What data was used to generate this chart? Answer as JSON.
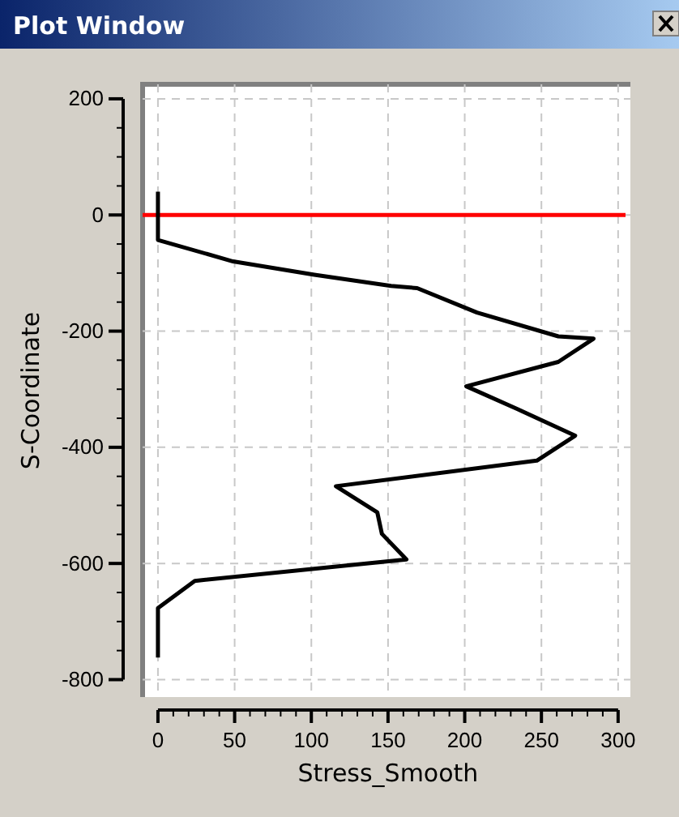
{
  "chart_data": {
    "type": "line",
    "title": "Plot Window",
    "xlabel": "Stress_Smooth",
    "ylabel": "S-Coordinate",
    "series": [
      {
        "color": "#000000",
        "x": [
          0,
          0,
          49,
          102,
          152,
          169,
          208,
          261,
          284,
          261,
          201,
          235,
          272,
          247,
          116,
          143,
          146,
          162,
          24,
          0,
          0
        ],
        "values": [
          40,
          -43,
          -80,
          -103,
          -122,
          -126,
          -168,
          -209,
          -213,
          -253,
          -295,
          -335,
          -380,
          -423,
          -467,
          -512,
          -549,
          -593,
          -630,
          -677,
          -762
        ]
      }
    ],
    "xlim": [
      -10,
      308
    ],
    "ylim": [
      -830,
      225
    ],
    "xticks": [
      0,
      {
        "value": 10,
        "label": null
      },
      {
        "value": 20,
        "label": null
      },
      {
        "value": 30,
        "label": null
      },
      {
        "value": 40,
        "label": null
      },
      50,
      {
        "value": 60,
        "label": null
      },
      {
        "value": 70,
        "label": null
      },
      {
        "value": 80,
        "label": null
      },
      {
        "value": 90,
        "label": null
      },
      100,
      {
        "value": 110,
        "label": null
      },
      {
        "value": 120,
        "label": null
      },
      {
        "value": 130,
        "label": null
      },
      {
        "value": 140,
        "label": null
      },
      150,
      {
        "value": 160,
        "label": null
      },
      {
        "value": 170,
        "label": null
      },
      {
        "value": 180,
        "label": null
      },
      {
        "value": 190,
        "label": null
      },
      200,
      {
        "value": 210,
        "label": null
      },
      {
        "value": 220,
        "label": null
      },
      {
        "value": 230,
        "label": null
      },
      {
        "value": 240,
        "label": null
      },
      250,
      {
        "value": 260,
        "label": null
      },
      {
        "value": 270,
        "label": null
      },
      {
        "value": 280,
        "label": null
      },
      {
        "value": 290,
        "label": null
      },
      300
    ],
    "yticks": [
      200,
      {
        "value": 150,
        "label": null
      },
      {
        "value": 100,
        "label": null
      },
      {
        "value": 50,
        "label": null
      },
      0,
      {
        "value": -50,
        "label": null
      },
      {
        "value": -100,
        "label": null
      },
      {
        "value": -150,
        "label": null
      },
      -200,
      {
        "value": -250,
        "label": null
      },
      {
        "value": -300,
        "label": null
      },
      {
        "value": -350,
        "label": null
      },
      -400,
      {
        "value": -450,
        "label": null
      },
      {
        "value": -500,
        "label": null
      },
      {
        "value": -550,
        "label": null
      },
      -600,
      {
        "value": -650,
        "label": null
      },
      {
        "value": -700,
        "label": null
      },
      {
        "value": -750,
        "label": null
      },
      -800
    ],
    "ref_lines": [
      {
        "axis": "y",
        "value": 0,
        "color": "#ff0000"
      }
    ],
    "grid": true,
    "marker": "none",
    "line_style": "solid"
  }
}
